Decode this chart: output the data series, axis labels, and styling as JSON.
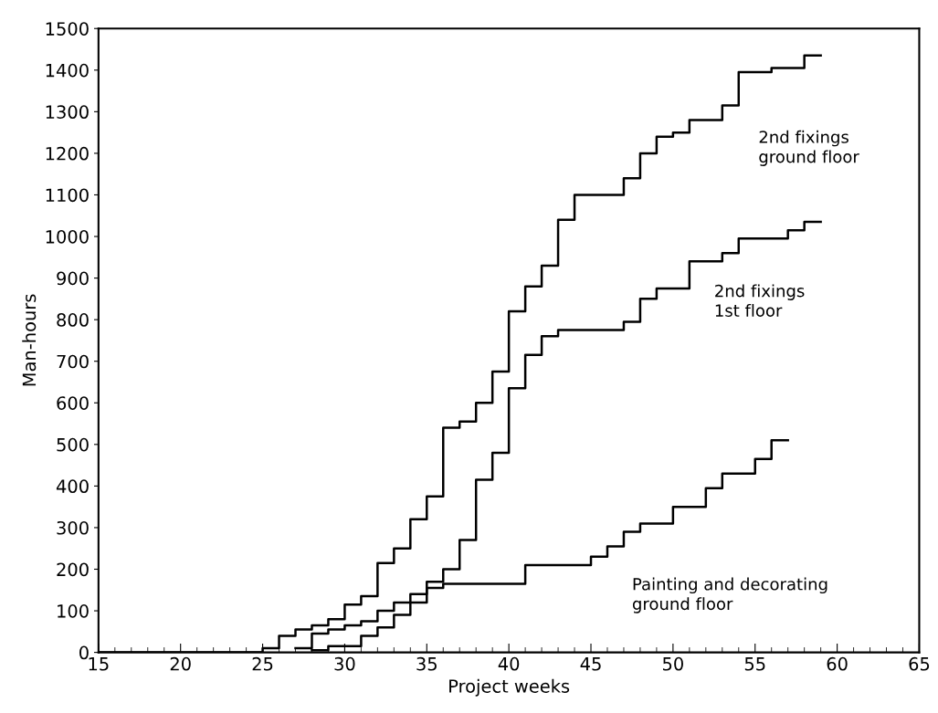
{
  "chart_data": {
    "type": "step",
    "xlabel": "Project weeks",
    "ylabel": "Man-hours",
    "xlim": [
      15,
      65
    ],
    "xticks": [
      15,
      20,
      25,
      30,
      35,
      40,
      45,
      50,
      55,
      60,
      65
    ],
    "ylim": [
      0,
      1500
    ],
    "yticks": [
      0,
      100,
      200,
      300,
      400,
      500,
      600,
      700,
      800,
      900,
      1000,
      1100,
      1200,
      1300,
      1400,
      1500
    ],
    "grid": false,
    "legend": false,
    "series": [
      {
        "name": "2nd fixings\nground floor",
        "color": "#000000",
        "x": [
          15,
          25,
          26,
          27,
          28,
          29,
          30,
          31,
          32,
          33,
          34,
          35,
          36,
          37,
          38,
          39,
          40,
          41,
          42,
          43,
          44,
          47,
          48,
          49,
          50,
          51,
          53,
          54,
          56,
          58,
          59
        ],
        "values": [
          0,
          10,
          40,
          55,
          65,
          80,
          115,
          135,
          215,
          250,
          320,
          375,
          540,
          555,
          600,
          675,
          820,
          880,
          930,
          1040,
          1100,
          1140,
          1200,
          1240,
          1250,
          1280,
          1315,
          1395,
          1405,
          1435,
          1435
        ]
      },
      {
        "name": "2nd fixings\n1st floor",
        "color": "#000000",
        "x": [
          27,
          28,
          29,
          30,
          31,
          32,
          33,
          34,
          35,
          36,
          37,
          38,
          39,
          40,
          41,
          42,
          43,
          47,
          48,
          49,
          51,
          53,
          54,
          57,
          58,
          59
        ],
        "values": [
          10,
          45,
          55,
          65,
          75,
          100,
          120,
          140,
          170,
          200,
          270,
          415,
          480,
          635,
          715,
          760,
          775,
          795,
          850,
          875,
          940,
          960,
          995,
          1015,
          1035,
          1035
        ]
      },
      {
        "name": "Painting and decorating\nground floor",
        "color": "#000000",
        "x": [
          28,
          29,
          31,
          32,
          33,
          34,
          35,
          36,
          41,
          45,
          46,
          47,
          48,
          50,
          52,
          53,
          55,
          56,
          57
        ],
        "values": [
          5,
          15,
          40,
          60,
          90,
          120,
          155,
          165,
          210,
          230,
          255,
          290,
          310,
          350,
          395,
          430,
          465,
          510,
          510
        ]
      }
    ]
  }
}
